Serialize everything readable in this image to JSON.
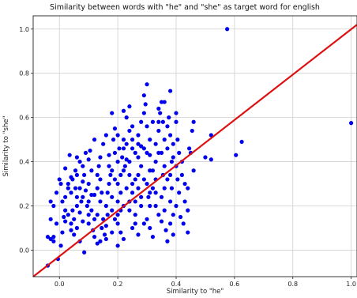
{
  "chart_data": {
    "type": "scatter",
    "title": "Similarity between words with \"he\" and \"she\" as target word for english",
    "xlabel": "Similarity to \"he\"",
    "ylabel": "Similarity to \"she\"",
    "xlim": [
      -0.09,
      1.02
    ],
    "ylim": [
      -0.12,
      1.06
    ],
    "xticks": [
      "0.0",
      "0.2",
      "0.4",
      "0.6",
      "0.8",
      "1.0"
    ],
    "yticks": [
      "0.0",
      "0.2",
      "0.4",
      "0.6",
      "0.8",
      "1.0"
    ],
    "grid": true,
    "point_color": "#0000ee",
    "line_color": "#dd1111",
    "reference_line": {
      "x": [
        -0.09,
        1.02
      ],
      "y": [
        -0.12,
        1.02
      ]
    },
    "series": [
      {
        "points": [
          [
            0.575,
            1.0
          ],
          [
            1.0,
            0.575
          ],
          [
            0.625,
            0.49
          ],
          [
            0.605,
            0.43
          ],
          [
            0.52,
            0.52
          ],
          [
            0.5,
            0.42
          ],
          [
            0.52,
            0.41
          ],
          [
            -0.04,
            0.06
          ],
          [
            -0.03,
            0.05
          ],
          [
            -0.02,
            0.04
          ],
          [
            -0.02,
            0.06
          ],
          [
            0.005,
            0.02
          ],
          [
            -0.005,
            -0.04
          ],
          [
            -0.04,
            -0.07
          ],
          [
            0.02,
            0.13
          ],
          [
            -0.01,
            0.12
          ],
          [
            -0.03,
            0.14
          ],
          [
            -0.02,
            0.2
          ],
          [
            -0.01,
            0.26
          ],
          [
            0.005,
            0.3
          ],
          [
            0.0,
            0.32
          ],
          [
            0.01,
            0.22
          ],
          [
            0.02,
            0.24
          ],
          [
            0.03,
            0.3
          ],
          [
            0.04,
            0.26
          ],
          [
            0.02,
            0.18
          ],
          [
            0.03,
            0.16
          ],
          [
            0.04,
            0.12
          ],
          [
            0.04,
            0.09
          ],
          [
            0.05,
            0.07
          ],
          [
            0.045,
            0.32
          ],
          [
            0.06,
            0.34
          ],
          [
            0.055,
            0.36
          ],
          [
            0.07,
            0.4
          ],
          [
            0.08,
            0.38
          ],
          [
            0.085,
            0.34
          ],
          [
            0.07,
            0.28
          ],
          [
            0.08,
            0.24
          ],
          [
            0.06,
            0.2
          ],
          [
            0.07,
            0.17
          ],
          [
            0.08,
            0.13
          ],
          [
            0.05,
            0.14
          ],
          [
            0.06,
            0.1
          ],
          [
            0.07,
            0.04
          ],
          [
            0.085,
            -0.01
          ],
          [
            0.035,
            0.43
          ],
          [
            0.06,
            0.42
          ],
          [
            0.1,
            0.41
          ],
          [
            0.105,
            0.45
          ],
          [
            0.11,
            0.36
          ],
          [
            0.1,
            0.3
          ],
          [
            0.1,
            0.22
          ],
          [
            0.11,
            0.18
          ],
          [
            0.1,
            0.12
          ],
          [
            0.115,
            0.09
          ],
          [
            0.12,
            0.06
          ],
          [
            0.13,
            0.03
          ],
          [
            0.12,
            0.25
          ],
          [
            0.13,
            0.28
          ],
          [
            0.14,
            0.32
          ],
          [
            0.135,
            0.38
          ],
          [
            0.14,
            0.42
          ],
          [
            0.13,
            0.16
          ],
          [
            0.15,
            0.14
          ],
          [
            0.145,
            0.1
          ],
          [
            0.155,
            0.07
          ],
          [
            0.16,
            0.2
          ],
          [
            0.165,
            0.26
          ],
          [
            0.17,
            0.3
          ],
          [
            0.175,
            0.34
          ],
          [
            0.18,
            0.36
          ],
          [
            0.17,
            0.43
          ],
          [
            0.19,
            0.44
          ],
          [
            0.185,
            0.5
          ],
          [
            0.2,
            0.52
          ],
          [
            0.19,
            0.55
          ],
          [
            0.2,
            0.4
          ],
          [
            0.2,
            0.3
          ],
          [
            0.21,
            0.26
          ],
          [
            0.2,
            0.22
          ],
          [
            0.21,
            0.18
          ],
          [
            0.19,
            0.14
          ],
          [
            0.2,
            0.12
          ],
          [
            0.21,
            0.08
          ],
          [
            0.22,
            0.05
          ],
          [
            0.2,
            0.02
          ],
          [
            0.22,
            0.36
          ],
          [
            0.225,
            0.38
          ],
          [
            0.23,
            0.41
          ],
          [
            0.22,
            0.46
          ],
          [
            0.23,
            0.48
          ],
          [
            0.24,
            0.54
          ],
          [
            0.23,
            0.6
          ],
          [
            0.22,
            0.63
          ],
          [
            0.24,
            0.65
          ],
          [
            0.25,
            0.56
          ],
          [
            0.25,
            0.5
          ],
          [
            0.26,
            0.44
          ],
          [
            0.24,
            0.34
          ],
          [
            0.25,
            0.3
          ],
          [
            0.25,
            0.26
          ],
          [
            0.26,
            0.22
          ],
          [
            0.24,
            0.18
          ],
          [
            0.26,
            0.16
          ],
          [
            0.25,
            0.1
          ],
          [
            0.27,
            0.07
          ],
          [
            0.27,
            0.34
          ],
          [
            0.28,
            0.38
          ],
          [
            0.27,
            0.42
          ],
          [
            0.28,
            0.47
          ],
          [
            0.27,
            0.52
          ],
          [
            0.28,
            0.58
          ],
          [
            0.29,
            0.62
          ],
          [
            0.29,
            0.7
          ],
          [
            0.3,
            0.75
          ],
          [
            0.295,
            0.66
          ],
          [
            0.3,
            0.56
          ],
          [
            0.31,
            0.5
          ],
          [
            0.3,
            0.44
          ],
          [
            0.31,
            0.36
          ],
          [
            0.3,
            0.3
          ],
          [
            0.305,
            0.24
          ],
          [
            0.31,
            0.2
          ],
          [
            0.3,
            0.14
          ],
          [
            0.31,
            0.1
          ],
          [
            0.32,
            0.06
          ],
          [
            0.32,
            0.28
          ],
          [
            0.33,
            0.32
          ],
          [
            0.33,
            0.4
          ],
          [
            0.34,
            0.44
          ],
          [
            0.33,
            0.48
          ],
          [
            0.34,
            0.54
          ],
          [
            0.345,
            0.62
          ],
          [
            0.35,
            0.67
          ],
          [
            0.36,
            0.67
          ],
          [
            0.34,
            0.64
          ],
          [
            0.355,
            0.58
          ],
          [
            0.36,
            0.5
          ],
          [
            0.35,
            0.44
          ],
          [
            0.36,
            0.38
          ],
          [
            0.355,
            0.34
          ],
          [
            0.36,
            0.28
          ],
          [
            0.35,
            0.24
          ],
          [
            0.36,
            0.18
          ],
          [
            0.35,
            0.13
          ],
          [
            0.365,
            0.09
          ],
          [
            0.37,
            0.04
          ],
          [
            0.38,
            0.72
          ],
          [
            0.375,
            0.6
          ],
          [
            0.38,
            0.52
          ],
          [
            0.37,
            0.46
          ],
          [
            0.385,
            0.4
          ],
          [
            0.38,
            0.34
          ],
          [
            0.385,
            0.28
          ],
          [
            0.38,
            0.22
          ],
          [
            0.39,
            0.16
          ],
          [
            0.38,
            0.12
          ],
          [
            0.39,
            0.07
          ],
          [
            0.4,
            0.62
          ],
          [
            0.4,
            0.58
          ],
          [
            0.405,
            0.5
          ],
          [
            0.41,
            0.44
          ],
          [
            0.4,
            0.38
          ],
          [
            0.405,
            0.32
          ],
          [
            0.41,
            0.26
          ],
          [
            0.4,
            0.2
          ],
          [
            0.415,
            0.15
          ],
          [
            0.42,
            0.4
          ],
          [
            0.42,
            0.34
          ],
          [
            0.43,
            0.3
          ],
          [
            0.43,
            0.22
          ],
          [
            0.44,
            0.18
          ],
          [
            0.425,
            0.12
          ],
          [
            0.44,
            0.08
          ],
          [
            0.445,
            0.46
          ],
          [
            0.455,
            0.54
          ],
          [
            0.46,
            0.58
          ],
          [
            0.45,
            0.44
          ],
          [
            0.46,
            0.36
          ],
          [
            0.44,
            0.28
          ],
          [
            0.15,
            0.48
          ],
          [
            0.16,
            0.52
          ],
          [
            0.18,
            0.62
          ],
          [
            0.12,
            0.5
          ],
          [
            0.09,
            0.44
          ],
          [
            0.08,
            0.31
          ],
          [
            0.14,
            0.22
          ],
          [
            0.18,
            0.24
          ],
          [
            0.16,
            0.11
          ],
          [
            0.27,
            0.28
          ],
          [
            0.28,
            0.2
          ],
          [
            0.29,
            0.12
          ],
          [
            0.33,
            0.2
          ],
          [
            0.34,
            0.16
          ],
          [
            0.28,
            0.24
          ],
          [
            0.26,
            0.12
          ],
          [
            0.24,
            0.4
          ],
          [
            0.21,
            0.34
          ],
          [
            0.19,
            0.32
          ],
          [
            0.17,
            0.38
          ],
          [
            0.13,
            0.34
          ],
          [
            0.09,
            0.27
          ],
          [
            0.06,
            0.24
          ],
          [
            0.03,
            0.28
          ],
          [
            0.01,
            0.08
          ],
          [
            -0.03,
            0.22
          ],
          [
            0.02,
            0.37
          ],
          [
            0.04,
            0.33
          ],
          [
            0.1,
            0.16
          ],
          [
            0.12,
            0.14
          ],
          [
            0.145,
            0.26
          ],
          [
            0.165,
            0.16
          ],
          [
            0.18,
            0.18
          ],
          [
            0.23,
            0.28
          ],
          [
            0.26,
            0.32
          ],
          [
            0.29,
            0.32
          ],
          [
            0.32,
            0.36
          ],
          [
            0.31,
            0.43
          ],
          [
            0.29,
            0.46
          ],
          [
            0.27,
            0.48
          ],
          [
            0.25,
            0.46
          ],
          [
            0.22,
            0.5
          ],
          [
            0.215,
            0.42
          ],
          [
            0.205,
            0.46
          ],
          [
            0.32,
            0.58
          ],
          [
            0.34,
            0.58
          ],
          [
            0.37,
            0.56
          ],
          [
            0.39,
            0.48
          ],
          [
            0.39,
            0.42
          ],
          [
            0.37,
            0.32
          ],
          [
            0.33,
            0.26
          ],
          [
            0.31,
            0.26
          ],
          [
            0.24,
            0.22
          ],
          [
            0.22,
            0.2
          ],
          [
            0.2,
            0.16
          ],
          [
            0.18,
            0.08
          ],
          [
            0.16,
            0.05
          ],
          [
            0.14,
            0.04
          ],
          [
            0.11,
            0.25
          ],
          [
            0.095,
            0.2
          ],
          [
            0.075,
            0.22
          ],
          [
            0.055,
            0.28
          ],
          [
            0.045,
            0.18
          ],
          [
            0.015,
            0.15
          ]
        ]
      }
    ]
  }
}
